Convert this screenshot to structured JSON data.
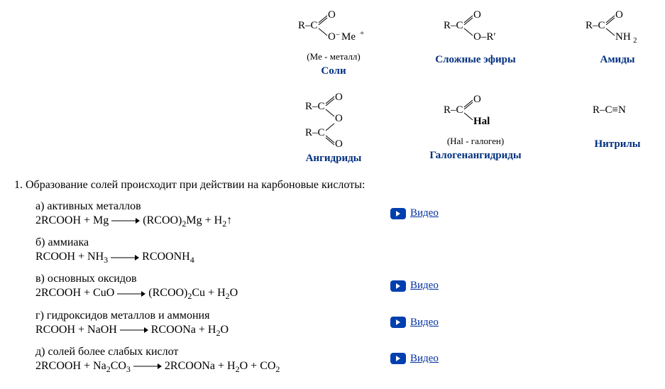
{
  "structures_row1": [
    {
      "note": "(Me - металл)",
      "label": "Соли"
    },
    {
      "note": "",
      "label": "Сложные эфиры"
    },
    {
      "note": "",
      "label": "Амиды"
    }
  ],
  "structures_row2": [
    {
      "note": "",
      "label": "Ангидриды"
    },
    {
      "note": "(Hal - галоген)",
      "label": "Галогенангидриды"
    },
    {
      "note": "",
      "label": "Нитрилы"
    }
  ],
  "main_text": "1. Образование солей происходит при действии на карбоновые кислоты:",
  "reactions": [
    {
      "title": "а) активных металлов",
      "eq_html": "2RCOOH + Mg <svg class='arrow' width='40' height='10'><line x1='0' y1='5' x2='34' y2='5' stroke='#000' stroke-width='1'/><polygon points='34,1 40,5 34,9' fill='#000'/></svg> (RCOO)<sub>2</sub>Mg + H<sub>2</sub>↑",
      "video": true
    },
    {
      "title": "б) аммиака",
      "eq_html": "RCOOH + NH<sub>3</sub> <svg class='arrow' width='40' height='10'><line x1='0' y1='5' x2='34' y2='5' stroke='#000' stroke-width='1'/><polygon points='34,1 40,5 34,9' fill='#000'/></svg> RCOONH<sub>4</sub>",
      "video": false
    },
    {
      "title": "в) основных оксидов",
      "eq_html": "2RCOOH + CuO <svg class='arrow' width='40' height='10'><line x1='0' y1='5' x2='34' y2='5' stroke='#000' stroke-width='1'/><polygon points='34,1 40,5 34,9' fill='#000'/></svg> (RCOO)<sub>2</sub>Cu + H<sub>2</sub>O",
      "video": true
    },
    {
      "title": "г) гидроксидов металлов и аммония",
      "eq_html": "RCOOH + NaOH <svg class='arrow' width='40' height='10'><line x1='0' y1='5' x2='34' y2='5' stroke='#000' stroke-width='1'/><polygon points='34,1 40,5 34,9' fill='#000'/></svg> RCOONa + H<sub>2</sub>O",
      "video": true
    },
    {
      "title": "д) солей более слабых кислот",
      "eq_html": "2RCOOH + Na<sub>2</sub>CO<sub>3</sub> <svg class='arrow' width='40' height='10'><line x1='0' y1='5' x2='34' y2='5' stroke='#000' stroke-width='1'/><polygon points='34,1 40,5 34,9' fill='#000'/></svg> 2RCOONa + H<sub>2</sub>O + CO<sub>2</sub>",
      "video": true
    }
  ],
  "video_label": "Видео",
  "colors": {
    "label": "#003080",
    "link": "#0030a0",
    "icon_bg": "#003fb0"
  }
}
